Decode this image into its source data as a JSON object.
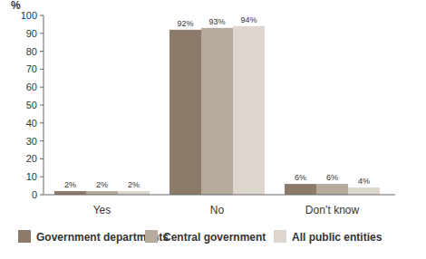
{
  "chart_data": {
    "type": "bar",
    "y_label": "%",
    "categories": [
      "Yes",
      "No",
      "Don’t know"
    ],
    "series": [
      {
        "name": "Government departments",
        "color": "#8c7b6b",
        "values": [
          2,
          92,
          6
        ],
        "value_labels": [
          "2%",
          "92%",
          "6%"
        ]
      },
      {
        "name": "Central government",
        "color": "#b6aa9c",
        "values": [
          2,
          93,
          6
        ],
        "value_labels": [
          "2%",
          "93%",
          "6%"
        ]
      },
      {
        "name": "All public entities",
        "color": "#dcd6cf",
        "values": [
          2,
          94,
          4
        ],
        "value_labels": [
          "2%",
          "94%",
          "4%"
        ]
      }
    ],
    "ylim": [
      0,
      100
    ],
    "yticks": [
      0,
      10,
      20,
      30,
      40,
      50,
      60,
      70,
      80,
      90,
      100
    ],
    "grid": false,
    "data_labels": true,
    "legend": "bottom"
  }
}
